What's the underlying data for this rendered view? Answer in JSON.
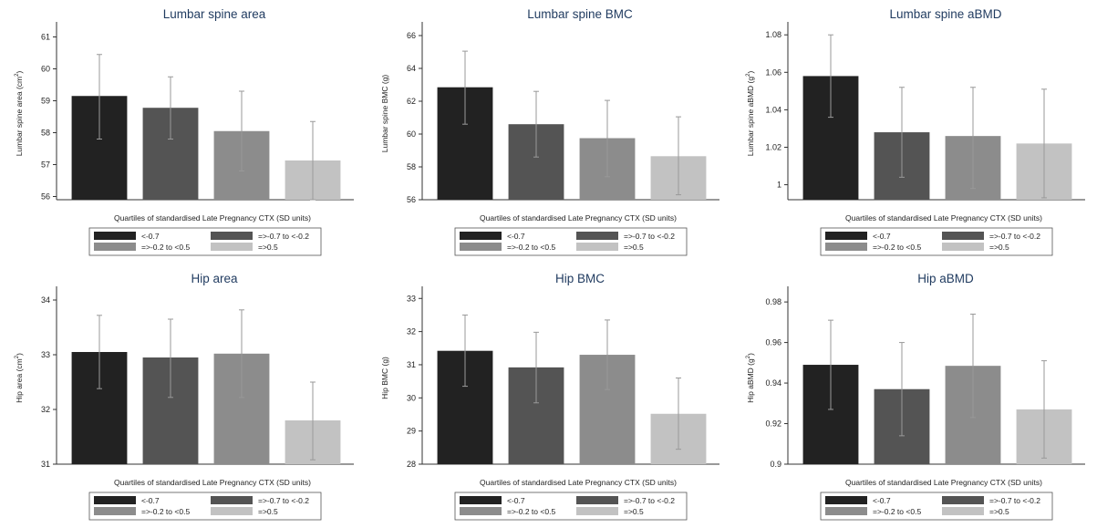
{
  "legend": {
    "entries": [
      {
        "label": "<-0.7",
        "color": "#222222"
      },
      {
        "label": "=>-0.7 to <-0.2",
        "color": "#545454"
      },
      {
        "label": "=>-0.2 to <0.5",
        "color": "#8c8c8c"
      },
      {
        "label": "=>0.5",
        "color": "#c2c2c2"
      }
    ]
  },
  "chart_data": [
    {
      "type": "bar",
      "title": "Lumbar spine area",
      "ylabel": "Lumbar spine area (cm",
      "ylabel_sup": "2",
      "ylabel_end": ")",
      "xlabel": "Quartiles of standardised Late Pregnancy CTX (SD units)",
      "categories": [
        "<-0.7",
        "=>-0.7 to <-0.2",
        "=>-0.2 to <0.5",
        "=>0.5"
      ],
      "values": [
        59.15,
        58.78,
        58.05,
        57.13
      ],
      "ci_low": [
        57.8,
        57.8,
        56.8,
        55.9
      ],
      "ci_high": [
        60.45,
        59.75,
        59.3,
        58.35
      ],
      "ylim": [
        55.9,
        61.3
      ],
      "yticks": [
        "56",
        "57",
        "58",
        "59",
        "60",
        "61"
      ],
      "grid": false
    },
    {
      "type": "bar",
      "title": "Lumbar spine BMC",
      "ylabel": "Lumbar spine BMC (g)",
      "xlabel": "Quartiles of standardised Late Pregnancy CTX (SD units)",
      "categories": [
        "<-0.7",
        "=>-0.7 to <-0.2",
        "=>-0.2 to <0.5",
        "=>0.5"
      ],
      "values": [
        62.85,
        60.6,
        59.75,
        58.65
      ],
      "ci_low": [
        60.6,
        58.6,
        57.4,
        56.3
      ],
      "ci_high": [
        65.05,
        62.6,
        62.05,
        61.05
      ],
      "ylim": [
        56,
        66.5
      ],
      "yticks": [
        "56",
        "58",
        "60",
        "62",
        "64",
        "66"
      ],
      "grid": false
    },
    {
      "type": "bar",
      "title": "Lumbar spine aBMD",
      "ylabel": "Lumbar spine aBMD (g",
      "ylabel_sup": "2",
      "ylabel_end": ")",
      "xlabel": "Quartiles of standardised Late Pregnancy CTX (SD units)",
      "categories": [
        "<-0.7",
        "=>-0.7 to <-0.2",
        "=>-0.2 to <0.5",
        "=>0.5"
      ],
      "values": [
        1.058,
        1.028,
        1.026,
        1.022
      ],
      "ci_low": [
        1.036,
        1.004,
        0.998,
        0.993
      ],
      "ci_high": [
        1.08,
        1.052,
        1.052,
        1.051
      ],
      "ylim": [
        0.992,
        1.084
      ],
      "yticks": [
        "1",
        "1.02",
        "1.04",
        "1.06",
        "1.08"
      ],
      "grid": false
    },
    {
      "type": "bar",
      "title": "Hip area",
      "ylabel": "Hip area (cm",
      "ylabel_sup": "2",
      "ylabel_end": ")",
      "xlabel": "Quartiles of standardised Late Pregnancy CTX (SD units)",
      "categories": [
        "<-0.7",
        "=>-0.7 to <-0.2",
        "=>-0.2 to <0.5",
        "=>0.5"
      ],
      "values": [
        33.05,
        32.95,
        33.02,
        31.8
      ],
      "ci_low": [
        32.38,
        32.22,
        32.22,
        31.08
      ],
      "ci_high": [
        33.72,
        33.65,
        33.82,
        32.5
      ],
      "ylim": [
        31,
        34.15
      ],
      "yticks": [
        "31",
        "32",
        "33",
        "34"
      ],
      "grid": false
    },
    {
      "type": "bar",
      "title": "Hip BMC",
      "ylabel": "Hip BMC (g)",
      "xlabel": "Quartiles of standardised Late Pregnancy CTX (SD units)",
      "categories": [
        "<-0.7",
        "=>-0.7 to <-0.2",
        "=>-0.2 to <0.5",
        "=>0.5"
      ],
      "values": [
        31.42,
        30.92,
        31.3,
        29.52
      ],
      "ci_low": [
        30.35,
        29.85,
        30.25,
        28.45
      ],
      "ci_high": [
        32.5,
        31.98,
        32.35,
        30.6
      ],
      "ylim": [
        28,
        33.2
      ],
      "yticks": [
        "28",
        "29",
        "30",
        "31",
        "32",
        "33"
      ],
      "grid": false
    },
    {
      "type": "bar",
      "title": "Hip aBMD",
      "ylabel": "Hip aBMD (g",
      "ylabel_sup": "2",
      "ylabel_end": ")",
      "xlabel": "Quartiles of standardised Late Pregnancy CTX (SD units)",
      "categories": [
        "<-0.7",
        "=>-0.7 to <-0.2",
        "=>-0.2 to <0.5",
        "=>0.5"
      ],
      "values": [
        0.949,
        0.937,
        0.9485,
        0.927
      ],
      "ci_low": [
        0.927,
        0.914,
        0.923,
        0.903
      ],
      "ci_high": [
        0.971,
        0.96,
        0.974,
        0.951
      ],
      "ylim": [
        0.9,
        0.985
      ],
      "yticks": [
        "0.9",
        "0.92",
        "0.94",
        "0.96",
        "0.98"
      ],
      "grid": false
    }
  ]
}
